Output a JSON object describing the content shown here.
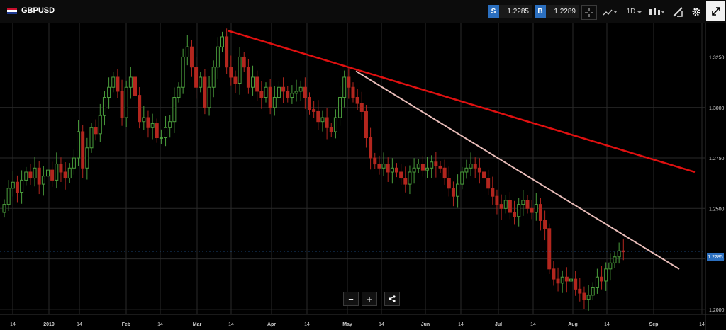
{
  "header": {
    "symbol": "GBPUSD",
    "sell_tag": "S",
    "sell_price": "1.2285",
    "buy_tag": "B",
    "buy_price": "1.2289",
    "timeframe": "1D",
    "icons": [
      "crosshair-icon",
      "chart-type-icon",
      "timeframe-dropdown",
      "candlestick-icon",
      "drawing-tool-icon",
      "gear-icon",
      "fullscreen-icon"
    ]
  },
  "price_tag": "1.2285",
  "zoom": {
    "minus": "−",
    "plus": "+"
  },
  "colors": {
    "up": "#4a9e3c",
    "down": "#b3261e",
    "trend1": "#e01010",
    "trend2": "#e8bcb8",
    "grid": "#2a2a2a",
    "accent": "#2b6fbf"
  },
  "chart_data": {
    "type": "candlestick",
    "ylim": [
      1.1975,
      1.342
    ],
    "y_ticks": [
      "1.3250",
      "1.3000",
      "1.2750",
      "1.2500",
      "1.2250",
      "1.2000"
    ],
    "x_ticks": [
      "14",
      "2019",
      "14",
      "Feb",
      "14",
      "Mar",
      "14",
      "Apr",
      "14",
      "May",
      "14",
      "Jun",
      "14",
      "Jul",
      "14",
      "Aug",
      "14",
      "Sep",
      "14"
    ],
    "closes": [
      1.252,
      1.26,
      1.263,
      1.258,
      1.264,
      1.268,
      1.265,
      1.27,
      1.262,
      1.266,
      1.269,
      1.264,
      1.272,
      1.268,
      1.265,
      1.27,
      1.275,
      1.288,
      1.27,
      1.28,
      1.29,
      1.287,
      1.296,
      1.305,
      1.31,
      1.315,
      1.308,
      1.295,
      1.31,
      1.315,
      1.306,
      1.293,
      1.295,
      1.29,
      1.292,
      1.285,
      1.285,
      1.29,
      1.293,
      1.305,
      1.31,
      1.325,
      1.33,
      1.32,
      1.31,
      1.315,
      1.3,
      1.31,
      1.32,
      1.33,
      1.335,
      1.32,
      1.315,
      1.312,
      1.325,
      1.32,
      1.31,
      1.315,
      1.308,
      1.305,
      1.31,
      1.3,
      1.305,
      1.31,
      1.308,
      1.305,
      1.307,
      1.308,
      1.31,
      1.305,
      1.299,
      1.298,
      1.293,
      1.295,
      1.29,
      1.288,
      1.295,
      1.305,
      1.315,
      1.31,
      1.305,
      1.302,
      1.298,
      1.285,
      1.275,
      1.272,
      1.27,
      1.272,
      1.268,
      1.27,
      1.268,
      1.265,
      1.262,
      1.268,
      1.27,
      1.272,
      1.269,
      1.27,
      1.273,
      1.271,
      1.27,
      1.265,
      1.26,
      1.256,
      1.262,
      1.268,
      1.27,
      1.272,
      1.27,
      1.268,
      1.265,
      1.26,
      1.256,
      1.252,
      1.25,
      1.254,
      1.248,
      1.246,
      1.252,
      1.254,
      1.25,
      1.248,
      1.252,
      1.244,
      1.24,
      1.22,
      1.215,
      1.213,
      1.216,
      1.214,
      1.215,
      1.21,
      1.208,
      1.205,
      1.207,
      1.211,
      1.216,
      1.214,
      1.22,
      1.223,
      1.226,
      1.229,
      1.2285
    ],
    "trendlines": [
      {
        "from": [
          1.338,
          62
        ],
        "to": [
          1.268,
          200
        ]
      },
      {
        "from": [
          1.318,
          101
        ],
        "to": [
          1.22,
          197
        ]
      }
    ]
  }
}
